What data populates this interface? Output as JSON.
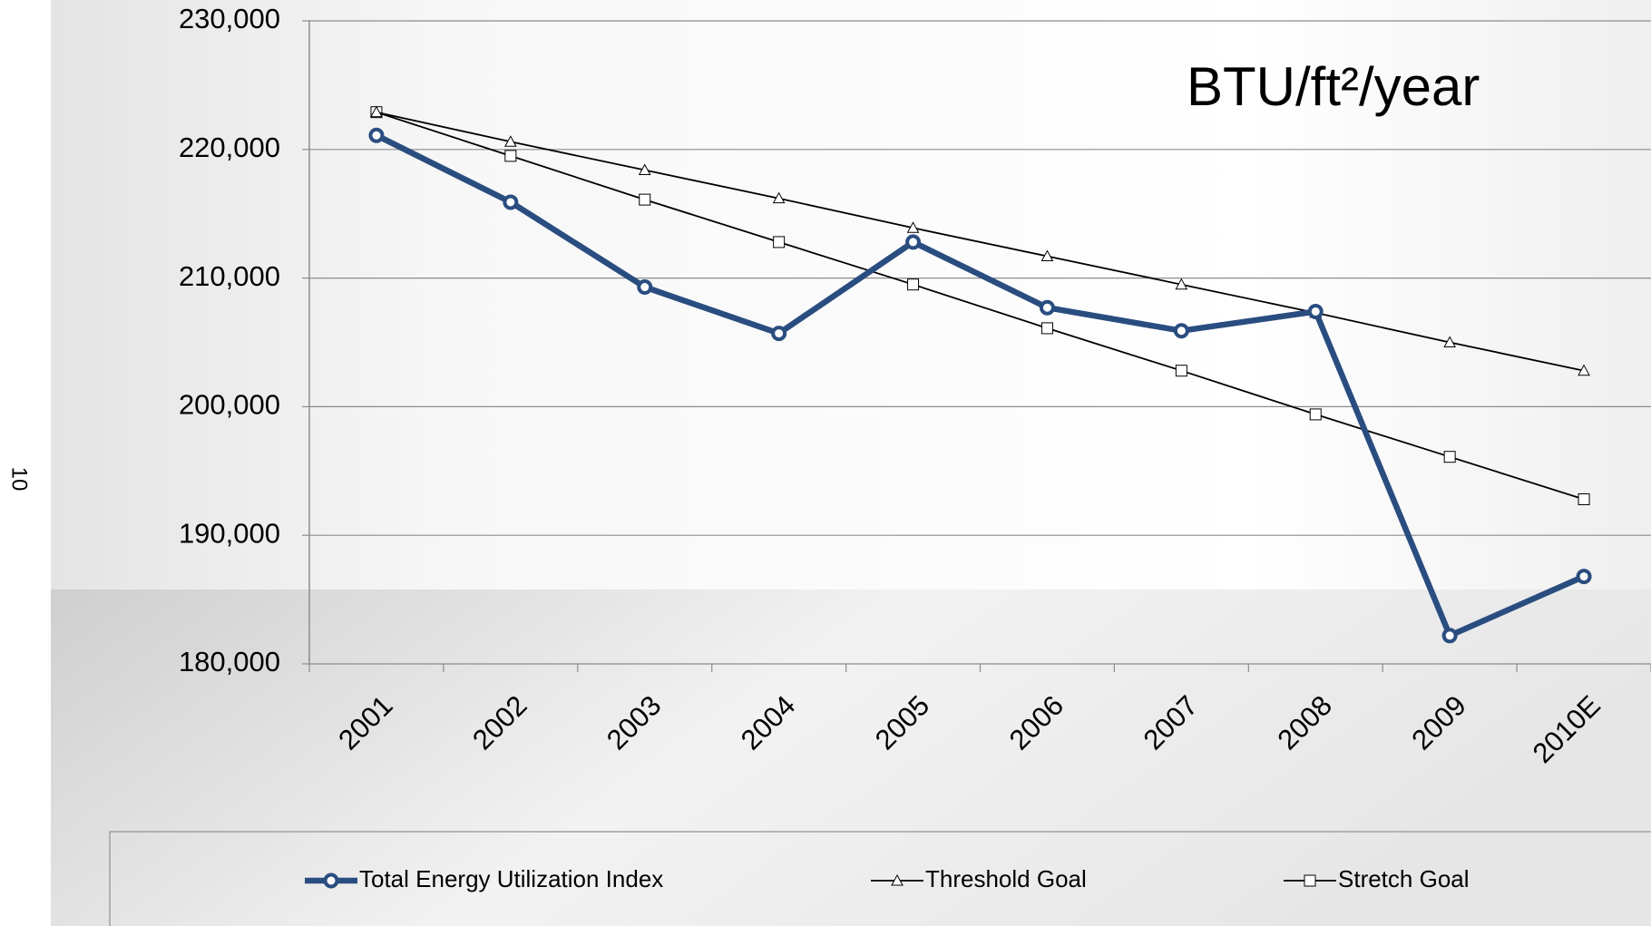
{
  "page_number": "10",
  "chart_data": {
    "type": "line",
    "annotation": "BTU/ft²/year",
    "categories": [
      "2001",
      "2002",
      "2003",
      "2004",
      "2005",
      "2006",
      "2007",
      "2008",
      "2009",
      "2010E"
    ],
    "series": [
      {
        "name": "Total Energy Utilization Index",
        "color": "#2a4d80",
        "marker": "circle",
        "values": [
          221100,
          215900,
          209300,
          205700,
          212800,
          207700,
          205900,
          207400,
          182200,
          186800
        ]
      },
      {
        "name": "Threshold Goal",
        "color": "#000000",
        "marker": "triangle",
        "values": [
          222900,
          220600,
          218400,
          216200,
          213900,
          211700,
          209500,
          207300,
          205000,
          202800
        ]
      },
      {
        "name": "Stretch Goal",
        "color": "#000000",
        "marker": "square",
        "values": [
          222900,
          219500,
          216100,
          212800,
          209500,
          206100,
          202800,
          199400,
          196100,
          192800
        ]
      }
    ],
    "ylim": [
      180000,
      230000
    ],
    "yticks": [
      {
        "value": 180000,
        "label": "180,000"
      },
      {
        "value": 190000,
        "label": "190,000"
      },
      {
        "value": 200000,
        "label": "200,000"
      },
      {
        "value": 210000,
        "label": "210,000"
      },
      {
        "value": 220000,
        "label": "220,000"
      },
      {
        "value": 230000,
        "label": "230,000"
      }
    ],
    "grid": true,
    "legend": "bottom"
  }
}
